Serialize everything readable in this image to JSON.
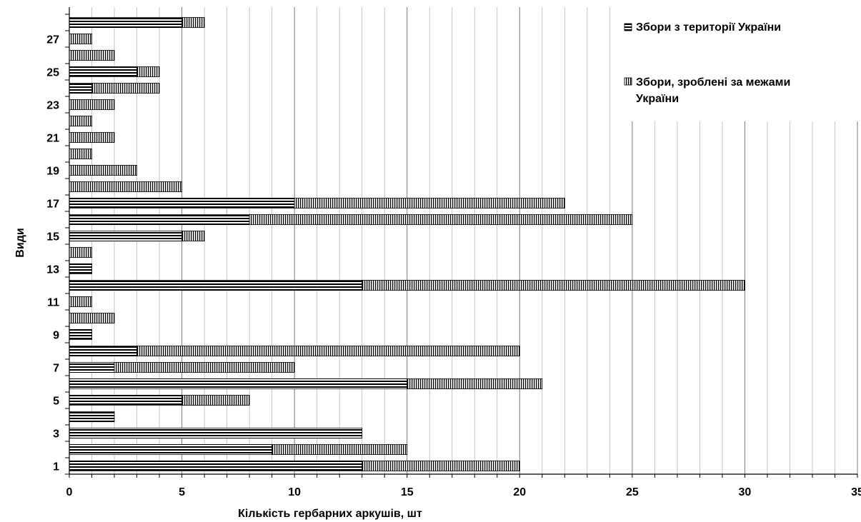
{
  "chart_data": {
    "type": "bar",
    "orientation": "horizontal",
    "stacked": true,
    "xlabel": "Кількість гербарних аркушів, шт",
    "ylabel": "Види",
    "xlim": [
      0,
      35
    ],
    "x_ticks": [
      0,
      5,
      10,
      15,
      20,
      25,
      30,
      35
    ],
    "x_tick_labels": [
      "0",
      "5",
      "10",
      "15",
      "20",
      "25",
      "30",
      "35"
    ],
    "y_tick_labels": [
      "1",
      "3",
      "5",
      "7",
      "9",
      "11",
      "13",
      "15",
      "17",
      "19",
      "21",
      "23",
      "25",
      "27"
    ],
    "grid": "vertical",
    "legend_position": "top-right",
    "categories": [
      "1",
      "2",
      "3",
      "4",
      "5",
      "6",
      "7",
      "8",
      "9",
      "10",
      "11",
      "12",
      "13",
      "14",
      "15",
      "16",
      "17",
      "18",
      "19",
      "20",
      "21",
      "22",
      "23",
      "24",
      "25",
      "26",
      "27",
      "28"
    ],
    "series": [
      {
        "name": "Збори з території України",
        "pattern": "horizontal-stripes",
        "values": [
          13,
          9,
          13,
          2,
          5,
          15,
          2,
          3,
          1,
          0,
          0,
          13,
          1,
          0,
          5,
          8,
          10,
          0,
          0,
          0,
          0,
          0,
          0,
          1,
          3,
          0,
          0,
          5
        ]
      },
      {
        "name": "Збори, зроблені за межами України",
        "pattern": "vertical-stripes",
        "values": [
          7,
          6,
          0,
          0,
          3,
          6,
          8,
          17,
          0,
          2,
          1,
          17,
          0,
          1,
          1,
          17,
          12,
          5,
          3,
          1,
          2,
          1,
          2,
          3,
          1,
          2,
          1,
          1
        ]
      }
    ]
  }
}
